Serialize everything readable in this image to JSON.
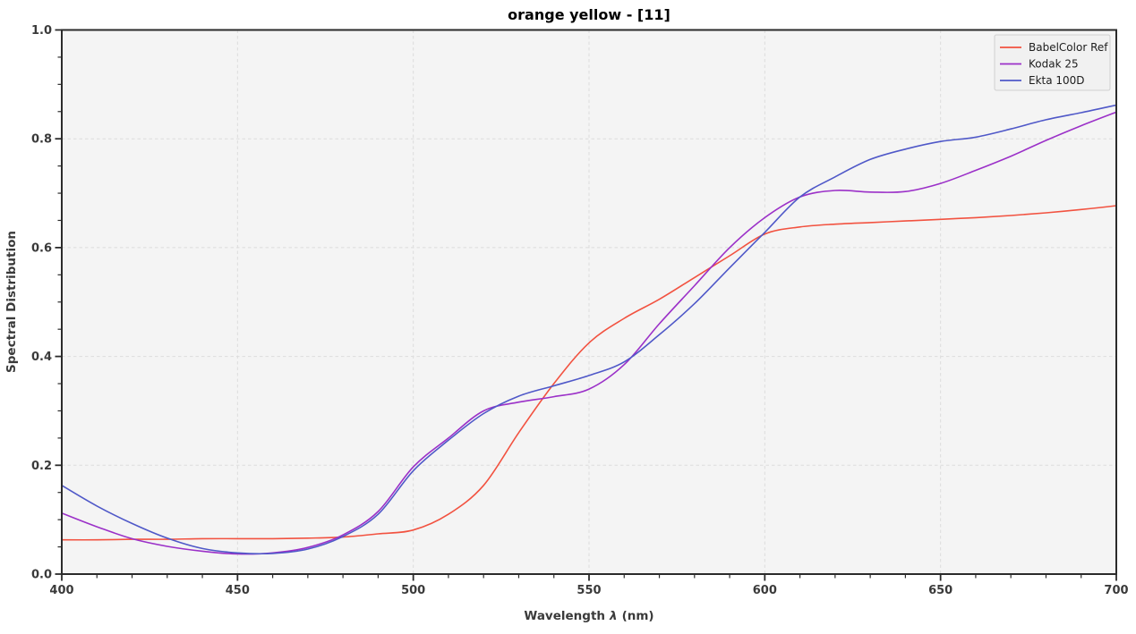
{
  "title": "orange yellow - [11]",
  "chart_data": {
    "type": "line",
    "title": "orange yellow - [11]",
    "xlabel": "Wavelength λ (nm)",
    "xlabel_parts": {
      "prefix": "Wavelength",
      "symbol": "λ",
      "suffix": "(nm)"
    },
    "ylabel": "Spectral Distribution",
    "xlim": [
      400,
      700
    ],
    "ylim": [
      0.0,
      1.0
    ],
    "grid": true,
    "legend_position": "upper-right",
    "x_major_ticks": [
      400,
      450,
      500,
      550,
      600,
      650,
      700
    ],
    "x_tick_labels": [
      "400",
      "450",
      "500",
      "550",
      "600",
      "650",
      "700"
    ],
    "x_minor_step": 10,
    "y_major_ticks": [
      0.0,
      0.2,
      0.4,
      0.6,
      0.8,
      1.0
    ],
    "y_tick_labels": [
      "0.0",
      "0.2",
      "0.4",
      "0.6",
      "0.8",
      "1.0"
    ],
    "y_minor_step": 0.05,
    "x": [
      400,
      410,
      420,
      430,
      440,
      450,
      460,
      470,
      480,
      490,
      500,
      510,
      520,
      530,
      540,
      550,
      560,
      570,
      580,
      590,
      600,
      610,
      620,
      630,
      640,
      650,
      660,
      670,
      680,
      690,
      700
    ],
    "series": [
      {
        "name": "BabelColor Ref",
        "color": "#f25240",
        "values": [
          0.063,
          0.063,
          0.064,
          0.064,
          0.065,
          0.065,
          0.065,
          0.066,
          0.068,
          0.074,
          0.081,
          0.11,
          0.163,
          0.26,
          0.35,
          0.425,
          0.47,
          0.505,
          0.545,
          0.585,
          0.625,
          0.638,
          0.643,
          0.646,
          0.649,
          0.652,
          0.655,
          0.659,
          0.664,
          0.67,
          0.677
        ]
      },
      {
        "name": "Kodak 25",
        "color": "#9b30c8",
        "values": [
          0.112,
          0.087,
          0.065,
          0.051,
          0.042,
          0.037,
          0.039,
          0.049,
          0.072,
          0.115,
          0.197,
          0.25,
          0.3,
          0.316,
          0.326,
          0.34,
          0.385,
          0.46,
          0.53,
          0.6,
          0.655,
          0.693,
          0.705,
          0.702,
          0.703,
          0.718,
          0.742,
          0.768,
          0.797,
          0.824,
          0.849
        ]
      },
      {
        "name": "Ekta 100D",
        "color": "#4f58c8",
        "values": [
          0.163,
          0.125,
          0.093,
          0.066,
          0.047,
          0.039,
          0.038,
          0.046,
          0.069,
          0.11,
          0.19,
          0.246,
          0.295,
          0.327,
          0.346,
          0.365,
          0.39,
          0.44,
          0.497,
          0.563,
          0.628,
          0.693,
          0.73,
          0.762,
          0.781,
          0.795,
          0.803,
          0.818,
          0.835,
          0.848,
          0.862
        ]
      }
    ]
  },
  "colors": {
    "plot_background": "#f4f4f4",
    "figure_background": "#ffffff",
    "gridline": "#dcdcdc",
    "spine": "#2b2b2b",
    "tick_label": "#3a3a3a"
  }
}
